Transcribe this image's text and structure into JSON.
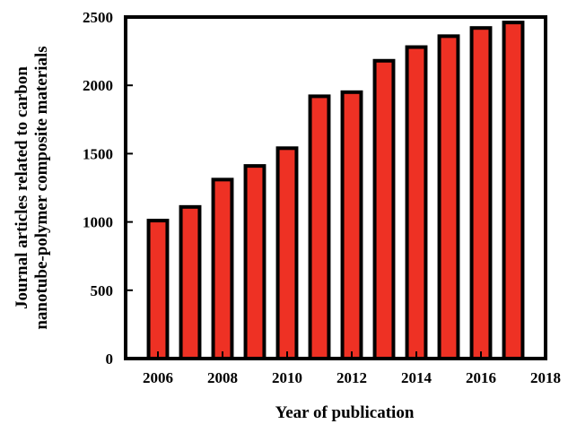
{
  "chart_data": {
    "type": "bar",
    "title": "",
    "xlabel": "Year of publication",
    "ylabel_lines": [
      "Journal articles related to carbon",
      "nanotube-polymer composite materials"
    ],
    "x": [
      2006,
      2007,
      2008,
      2009,
      2010,
      2011,
      2012,
      2013,
      2014,
      2015,
      2016,
      2017
    ],
    "values": [
      1010,
      1110,
      1310,
      1410,
      1540,
      1920,
      1950,
      2180,
      2280,
      2360,
      2420,
      2460
    ],
    "xlim": [
      2005,
      2018
    ],
    "ylim": [
      0,
      2500
    ],
    "xticks": [
      2006,
      2008,
      2010,
      2012,
      2014,
      2016,
      2018
    ],
    "yticks": [
      0,
      500,
      1000,
      1500,
      2000,
      2500
    ],
    "grid": false,
    "bar_color": "#ee3124",
    "edge_color": "#000000"
  }
}
